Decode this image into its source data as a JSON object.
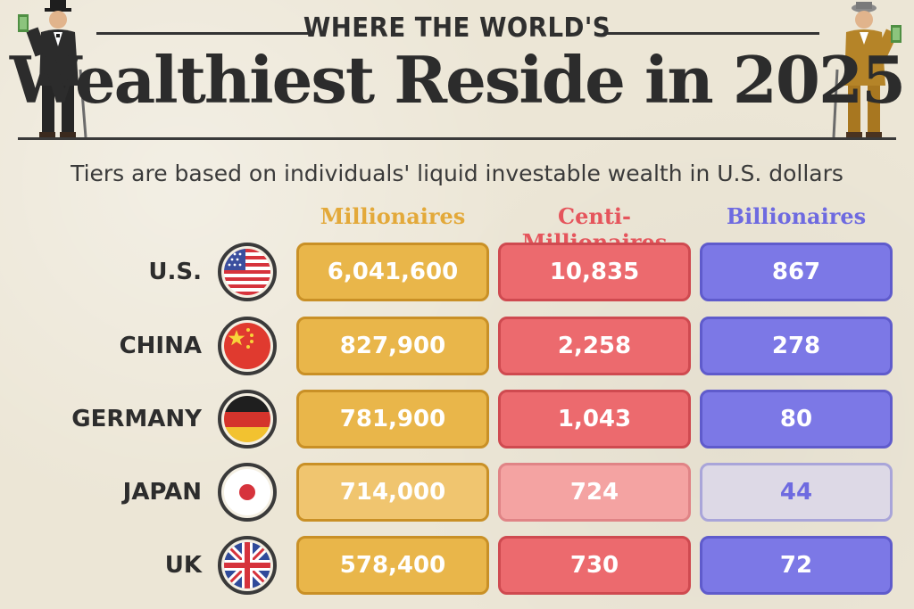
{
  "header": {
    "kicker": "WHERE THE WORLD'S",
    "title": "Wealthiest Reside in 2025",
    "subtitle": "Tiers are based on individuals' liquid investable wealth in U.S. dollars"
  },
  "colors": {
    "millionaires": "#e9b64a",
    "centi": "#ec6a6e",
    "billionaires": "#7c78e6",
    "background": "#ece6d6"
  },
  "chart_data": {
    "type": "table",
    "title": "Where the World's Wealthiest Reside in 2025",
    "columns": [
      "Millionaires",
      "Centi-Millionaires",
      "Billionaires"
    ],
    "rows": [
      {
        "country": "U.S.",
        "flag": "us-flag",
        "millionaires": "6,041,600",
        "centi": "10,835",
        "billionaires": "867"
      },
      {
        "country": "CHINA",
        "flag": "china-flag",
        "millionaires": "827,900",
        "centi": "2,258",
        "billionaires": "278"
      },
      {
        "country": "GERMANY",
        "flag": "germany-flag",
        "millionaires": "781,900",
        "centi": "1,043",
        "billionaires": "80"
      },
      {
        "country": "JAPAN",
        "flag": "japan-flag",
        "millionaires": "714,000",
        "centi": "724",
        "billionaires": "44"
      },
      {
        "country": "UK",
        "flag": "uk-flag",
        "millionaires": "578,400",
        "centi": "730",
        "billionaires": "72"
      }
    ]
  }
}
